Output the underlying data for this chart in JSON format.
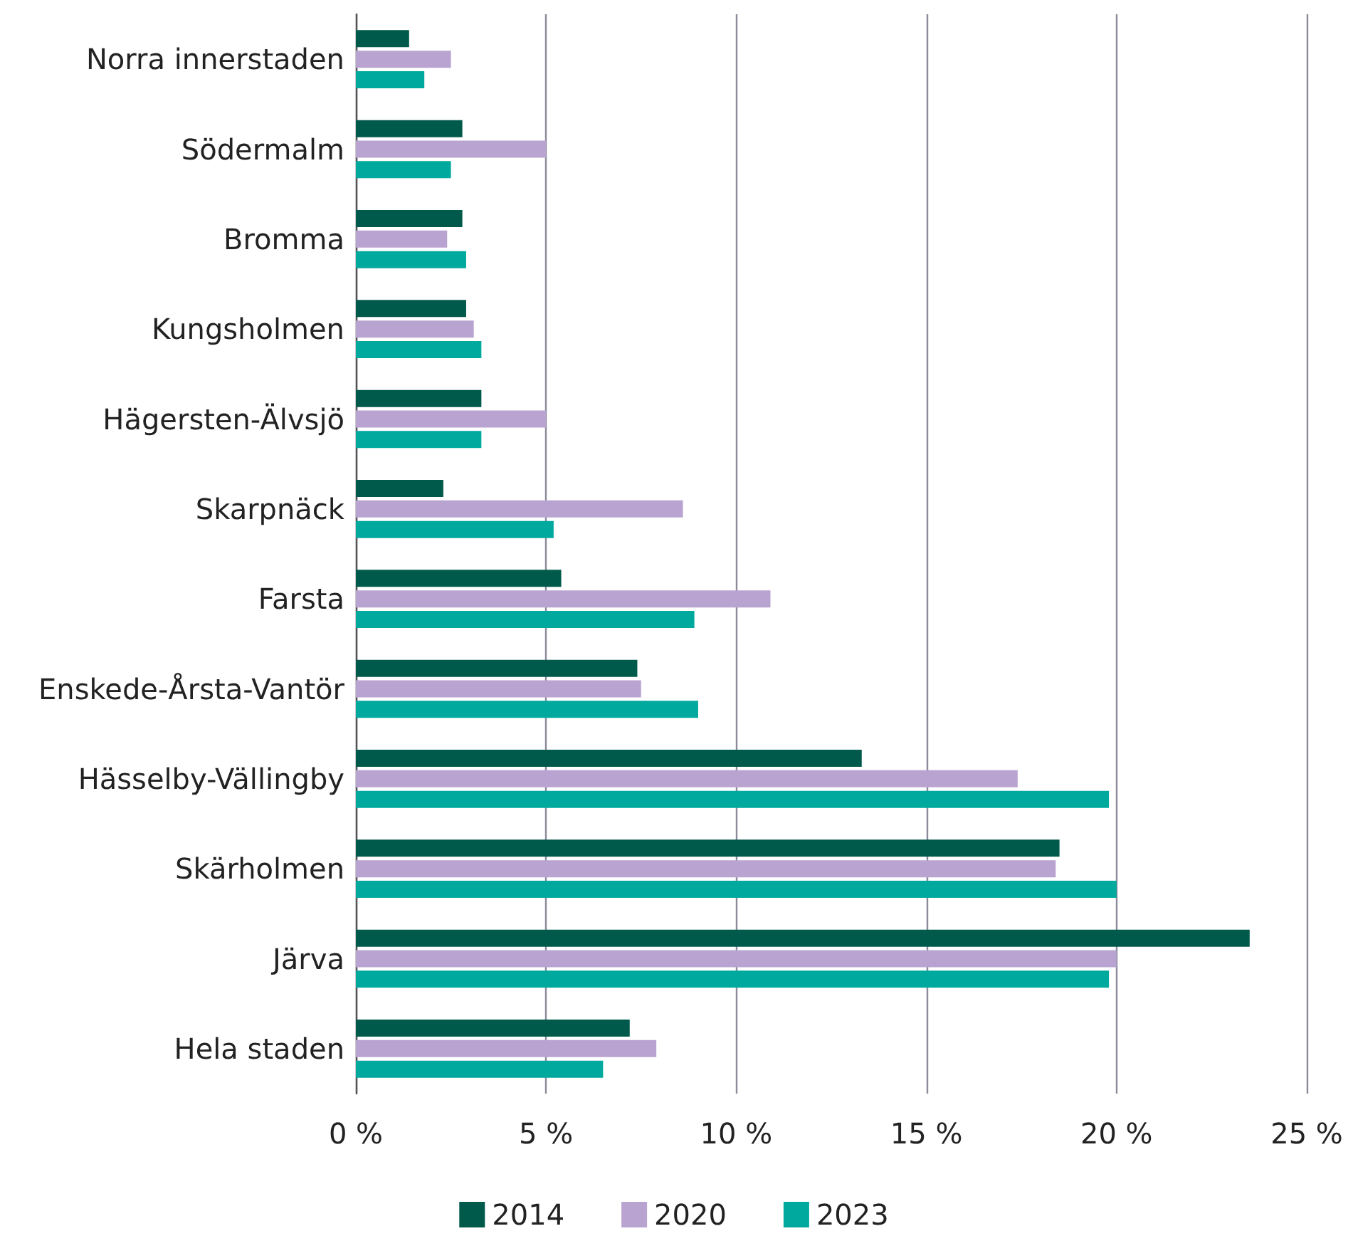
{
  "chart_data": {
    "type": "bar",
    "orientation": "horizontal",
    "categories": [
      "Norra innerstaden",
      "Södermalm",
      "Bromma",
      "Kungsholmen",
      "Hägersten-Älvsjö",
      "Skarpnäck",
      "Farsta",
      "Enskede-Årsta-Vantör",
      "Hässelby-Vällingby",
      "Skärholmen",
      "Järva",
      "Hela staden"
    ],
    "series": [
      {
        "name": "2014",
        "color": "#005a4b",
        "values": [
          1.4,
          2.8,
          2.8,
          2.9,
          3.3,
          2.3,
          5.4,
          7.4,
          13.3,
          18.5,
          23.5,
          7.2
        ]
      },
      {
        "name": "2020",
        "color": "#b9a3d1",
        "values": [
          2.5,
          5.0,
          2.4,
          3.1,
          5.0,
          8.6,
          10.9,
          7.5,
          17.4,
          18.4,
          20.0,
          7.9
        ]
      },
      {
        "name": "2023",
        "color": "#00a99d",
        "values": [
          1.8,
          2.5,
          2.9,
          3.3,
          3.3,
          5.2,
          8.9,
          9.0,
          19.8,
          20.0,
          19.8,
          6.5
        ]
      }
    ],
    "xlim": [
      0,
      25
    ],
    "xticks": [
      {
        "value": 0,
        "label": "0 %"
      },
      {
        "value": 5,
        "label": "5 %"
      },
      {
        "value": 10,
        "label": "10 %"
      },
      {
        "value": 15,
        "label": "15 %"
      },
      {
        "value": 20,
        "label": "20 %"
      },
      {
        "value": 25,
        "label": "25 %"
      }
    ],
    "grid": "x",
    "legend": "bottom"
  }
}
